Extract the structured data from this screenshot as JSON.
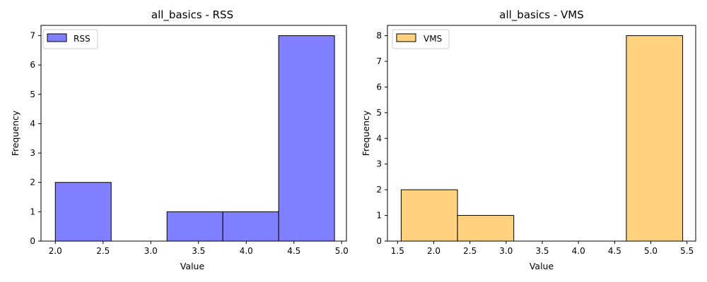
{
  "chart_data": [
    {
      "type": "histogram",
      "title": "all_basics - RSS",
      "xlabel": "Value",
      "ylabel": "Frequency",
      "xlim": [
        1.85,
        5.05
      ],
      "ylim": [
        0,
        7.35
      ],
      "xticks": [
        2.0,
        2.5,
        3.0,
        3.5,
        4.0,
        4.5,
        5.0
      ],
      "xtick_labels": [
        "2.0",
        "2.5",
        "3.0",
        "3.5",
        "4.0",
        "4.5",
        "5.0"
      ],
      "yticks": [
        0,
        1,
        2,
        3,
        4,
        5,
        6,
        7
      ],
      "ytick_labels": [
        "0",
        "1",
        "2",
        "3",
        "4",
        "5",
        "6",
        "7"
      ],
      "bins": [
        {
          "x0": 2.0,
          "x1": 2.585,
          "value": 2
        },
        {
          "x0": 2.585,
          "x1": 3.17,
          "value": 0
        },
        {
          "x0": 3.17,
          "x1": 3.755,
          "value": 1
        },
        {
          "x0": 3.755,
          "x1": 4.34,
          "value": 1
        },
        {
          "x0": 4.34,
          "x1": 4.925,
          "value": 7
        }
      ],
      "color": "#8080ff",
      "legend": {
        "label": "RSS",
        "position": "upper-left"
      },
      "grid": false
    },
    {
      "type": "histogram",
      "title": "all_basics - VMS",
      "xlabel": "Value",
      "ylabel": "Frequency",
      "xlim": [
        1.36,
        5.62
      ],
      "ylim": [
        0,
        8.4
      ],
      "xticks": [
        1.5,
        2.0,
        2.5,
        3.0,
        3.5,
        4.0,
        4.5,
        5.0,
        5.5
      ],
      "xtick_labels": [
        "1.5",
        "2.0",
        "2.5",
        "3.0",
        "3.5",
        "4.0",
        "4.5",
        "5.0",
        "5.5"
      ],
      "yticks": [
        0,
        1,
        2,
        3,
        4,
        5,
        6,
        7,
        8
      ],
      "ytick_labels": [
        "0",
        "1",
        "2",
        "3",
        "4",
        "5",
        "6",
        "7",
        "8"
      ],
      "bins": [
        {
          "x0": 1.55,
          "x1": 2.328,
          "value": 2
        },
        {
          "x0": 2.328,
          "x1": 3.106,
          "value": 1
        },
        {
          "x0": 3.106,
          "x1": 3.884,
          "value": 0
        },
        {
          "x0": 3.884,
          "x1": 4.662,
          "value": 0
        },
        {
          "x0": 4.662,
          "x1": 5.44,
          "value": 8
        }
      ],
      "color": "#ffd280",
      "legend": {
        "label": "VMS",
        "position": "upper-left"
      },
      "grid": false
    }
  ]
}
